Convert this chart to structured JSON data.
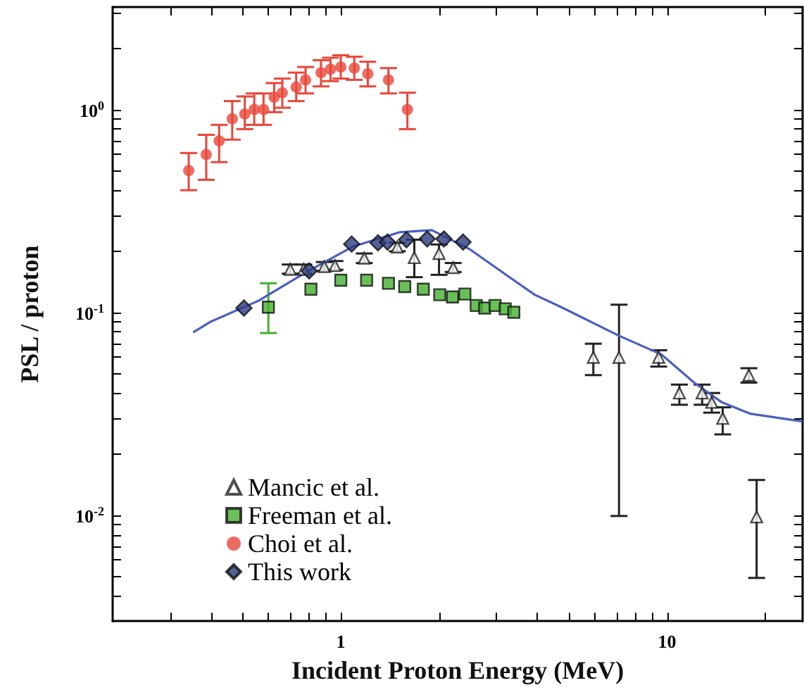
{
  "chart_data": {
    "type": "scatter",
    "xlabel": "Incident Proton Energy (MeV)",
    "ylabel": "PSL / proton",
    "log": "xy",
    "grid": false,
    "legend": "bottom left",
    "xlim": [
      0.2,
      26
    ],
    "ylim": [
      0.003,
      3.2
    ],
    "xticks": [
      {
        "value": 0.3,
        "label": null
      },
      {
        "value": 0.4,
        "label": null
      },
      {
        "value": 0.5,
        "label": null
      },
      {
        "value": 0.6,
        "label": null
      },
      {
        "value": 0.7,
        "label": null
      },
      {
        "value": 0.8,
        "label": null
      },
      {
        "value": 0.9,
        "label": null
      },
      1,
      {
        "value": 2,
        "label": null
      },
      {
        "value": 3,
        "label": null
      },
      {
        "value": 4,
        "label": null
      },
      {
        "value": 5,
        "label": null
      },
      {
        "value": 6,
        "label": null
      },
      {
        "value": 7,
        "label": null
      },
      {
        "value": 8,
        "label": null
      },
      {
        "value": 9,
        "label": null
      },
      10,
      {
        "value": 20,
        "label": null
      }
    ],
    "yticks": [
      {
        "value": 0.004,
        "label": null
      },
      {
        "value": 0.005,
        "label": null
      },
      {
        "value": 0.006,
        "label": null
      },
      {
        "value": 0.007,
        "label": null
      },
      {
        "value": 0.008,
        "label": null
      },
      {
        "value": 0.009,
        "label": null
      },
      {
        "value": 0.01,
        "label": "10$^{-2}$"
      },
      {
        "value": 0.02,
        "label": null
      },
      {
        "value": 0.03,
        "label": null
      },
      {
        "value": 0.04,
        "label": null
      },
      {
        "value": 0.05,
        "label": null
      },
      {
        "value": 0.06,
        "label": null
      },
      {
        "value": 0.07,
        "label": null
      },
      {
        "value": 0.08,
        "label": null
      },
      {
        "value": 0.09,
        "label": null
      },
      {
        "value": 0.1,
        "label": "10$^{-1}$"
      },
      {
        "value": 0.2,
        "label": null
      },
      {
        "value": 0.3,
        "label": null
      },
      {
        "value": 0.4,
        "label": null
      },
      {
        "value": 0.5,
        "label": null
      },
      {
        "value": 0.6,
        "label": null
      },
      {
        "value": 0.7,
        "label": null
      },
      {
        "value": 0.8,
        "label": null
      },
      {
        "value": 0.9,
        "label": null
      },
      {
        "value": 1,
        "label": "10$^{0}$"
      },
      {
        "value": 2,
        "label": null
      },
      {
        "value": 3,
        "label": null
      }
    ],
    "series": [
      {
        "type": "line",
        "color": "#4a5fc1",
        "marker": "none",
        "line_style": "solid",
        "x": [
          0.355,
          0.4,
          0.56,
          0.78,
          1.09,
          1.51,
          1.9,
          2.48,
          3.45,
          3.93,
          4.8,
          7.12,
          9.6,
          12.1,
          14.7,
          18.0,
          25.8
        ],
        "values": [
          0.08,
          0.09,
          0.114,
          0.157,
          0.211,
          0.248,
          0.254,
          0.205,
          0.141,
          0.122,
          0.105,
          0.0766,
          0.062,
          0.045,
          0.036,
          0.0316,
          0.029
        ]
      },
      {
        "name": "Mancic et al.",
        "color": "#222222",
        "marker": "triangle",
        "x": [
          0.7,
          0.77,
          0.89,
          0.96,
          1.18,
          1.49,
          1.68,
          2.0,
          2.21,
          5.94,
          7.12,
          9.42,
          10.9,
          12.8,
          13.7,
          14.8,
          17.8,
          18.8
        ],
        "values": [
          0.163,
          0.163,
          0.168,
          0.17,
          0.185,
          0.21,
          0.186,
          0.195,
          0.166,
          0.06,
          0.06,
          0.06,
          0.04,
          0.04,
          0.036,
          0.03,
          0.049,
          0.0098
        ],
        "errors": [
          [
            0.155,
            0.172
          ],
          [
            0.155,
            0.172
          ],
          [
            0.16,
            0.177
          ],
          [
            0.162,
            0.179
          ],
          [
            0.175,
            0.195
          ],
          [
            0.2,
            0.22
          ],
          [
            0.149,
            0.228
          ],
          [
            0.153,
            0.216
          ],
          [
            0.158,
            0.175
          ],
          [
            0.049,
            0.07
          ],
          [
            0.0099,
            0.109
          ],
          [
            0.054,
            0.065
          ],
          [
            0.035,
            0.044
          ],
          [
            0.035,
            0.044
          ],
          [
            0.032,
            0.04
          ],
          [
            0.025,
            0.034
          ],
          [
            0.045,
            0.053
          ],
          [
            0.0049,
            0.0149
          ]
        ]
      },
      {
        "name": "Freeman et al.",
        "color": "#44b02e",
        "marker": "square",
        "x": [
          0.6,
          0.81,
          1.0,
          1.2,
          1.4,
          1.57,
          1.79,
          2.01,
          2.2,
          2.4,
          2.6,
          2.76,
          2.97,
          3.19,
          3.39
        ],
        "values": [
          0.106,
          0.13,
          0.144,
          0.144,
          0.139,
          0.134,
          0.13,
          0.122,
          0.119,
          0.123,
          0.108,
          0.105,
          0.108,
          0.104,
          0.1
        ],
        "errors": [
          [
            0.079,
            0.139
          ],
          null,
          null,
          null,
          null,
          null,
          null,
          null,
          null,
          null,
          null,
          null,
          null,
          null,
          null
        ]
      },
      {
        "name": "Choi et al.",
        "color": "#e8473a",
        "marker": "circle",
        "x": [
          0.342,
          0.387,
          0.424,
          0.465,
          0.508,
          0.543,
          0.58,
          0.625,
          0.662,
          0.73,
          0.78,
          0.87,
          0.93,
          1.0,
          1.1,
          1.21,
          1.4,
          1.6
        ],
        "values": [
          0.5,
          0.6,
          0.7,
          0.9,
          0.95,
          1.0,
          1.0,
          1.15,
          1.21,
          1.29,
          1.4,
          1.52,
          1.58,
          1.62,
          1.6,
          1.5,
          1.4,
          1.0
        ],
        "errors": [
          [
            0.4,
            0.61
          ],
          [
            0.45,
            0.75
          ],
          [
            0.55,
            0.84
          ],
          [
            0.71,
            1.1
          ],
          [
            0.8,
            1.16
          ],
          [
            0.84,
            1.2
          ],
          [
            0.84,
            1.2
          ],
          [
            0.97,
            1.35
          ],
          [
            1.02,
            1.42
          ],
          [
            1.1,
            1.52
          ],
          [
            1.2,
            1.62
          ],
          [
            1.3,
            1.75
          ],
          [
            1.38,
            1.8
          ],
          [
            1.42,
            1.85
          ],
          [
            1.4,
            1.82
          ],
          [
            1.3,
            1.72
          ],
          [
            1.2,
            1.6
          ],
          [
            0.8,
            1.21
          ]
        ]
      },
      {
        "name": "This work",
        "color": "#2a3a80",
        "marker": "diamond",
        "x": [
          0.505,
          0.8,
          1.08,
          1.3,
          1.39,
          1.59,
          1.84,
          2.07,
          2.37
        ],
        "values": [
          0.105,
          0.16,
          0.217,
          0.22,
          0.222,
          0.228,
          0.23,
          0.23,
          0.222
        ]
      }
    ]
  }
}
